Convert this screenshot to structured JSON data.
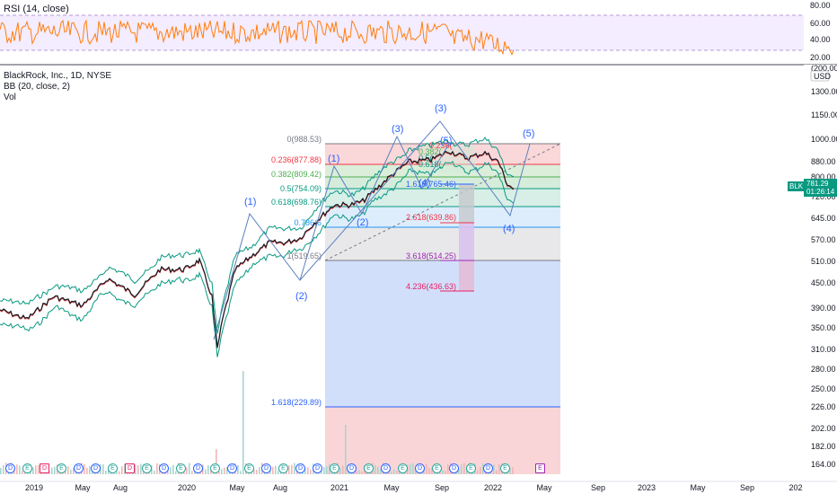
{
  "rsi_panel": {
    "title": "RSI (14, close)",
    "ticks": [
      "80.00",
      "60.00",
      "40.00",
      "20.00"
    ]
  },
  "main_panel": {
    "symbol_line": "BlackRock, Inc., 1D, NYSE",
    "bb_label": "BB (20, close, 2)",
    "vol_label": "Vol",
    "currency_badge": "USD",
    "price_ticks": [
      "1300.00",
      "1150.00",
      "1000.00",
      "880.00",
      "800.00",
      "720.00",
      "645.00",
      "570.00",
      "510.00",
      "450.00",
      "390.00",
      "350.00",
      "310.00",
      "280.00",
      "250.00",
      "226.00",
      "202.00",
      "182.00",
      "164.00"
    ],
    "scale_top_text": "(200.00)",
    "last_price_tag": {
      "symbol": "BLK",
      "price": "781.29",
      "countdown": "01:26:14"
    },
    "time_ticks": [
      "2019",
      "May",
      "Aug",
      "2020",
      "May",
      "Aug",
      "2021",
      "May",
      "Sep",
      "2022",
      "May",
      "Sep",
      "2023",
      "May",
      "Sep",
      "202"
    ]
  },
  "fib_retracement_upper": [
    {
      "label": "0(988.53)",
      "color": "#787b86"
    },
    {
      "label": "0.236(877.88)",
      "color": "#f23645"
    },
    {
      "label": "0.382(809.42)",
      "color": "#4caf50"
    },
    {
      "label": "0.5(754.09)",
      "color": "#089981"
    },
    {
      "label": "0.618(698.76)",
      "color": "#089981"
    },
    {
      "label": "0.786(6",
      "color": "#2196f3"
    },
    {
      "label": "1(519.65)",
      "color": "#787b86"
    },
    {
      "label": "1.618(229.89)",
      "color": "#2962ff"
    }
  ],
  "fib_extension_inner": [
    {
      "label": "1.618(765.46)",
      "color": "#2962ff"
    },
    {
      "label": "2.618(639.86)",
      "color": "#f23645"
    },
    {
      "label": "3.618(514.25)",
      "color": "#9c27b0"
    },
    {
      "label": "4.236(436.63)",
      "color": "#e91e63"
    }
  ],
  "fib_small_labels": [
    "0.236(",
    "0.382(",
    "0.5(",
    "0.618("
  ],
  "waves": {
    "big": [
      "(1)",
      "(2)",
      "(3)",
      "(4)",
      "(5)"
    ],
    "small": [
      "(1)",
      "(2)",
      "(3)",
      "(4)",
      "(5)"
    ]
  },
  "events": [
    "D",
    "E",
    "D",
    "E",
    "D",
    "D",
    "E",
    "D",
    "E",
    "D",
    "E",
    "D",
    "E",
    "D",
    "E",
    "D",
    "E",
    "D",
    "D",
    "E",
    "D",
    "E",
    "D",
    "E",
    "D",
    "E",
    "D",
    "E",
    "D",
    "E"
  ],
  "colors": {
    "rsi_line": "#ff7f0e",
    "rsi_band": "#e9d9ff",
    "bb_band": "#089981",
    "price_up": "#26a69a",
    "price_down": "#ef5350",
    "wave": "#2962ff",
    "last_price": "#089981"
  }
}
